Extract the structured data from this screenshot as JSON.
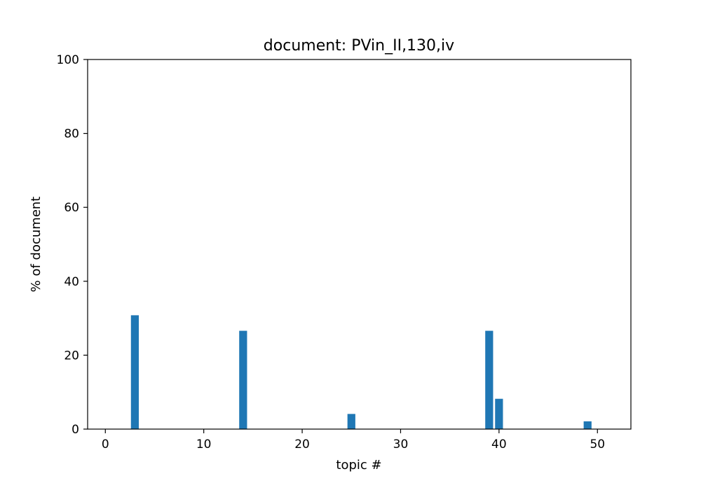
{
  "chart_data": {
    "type": "bar",
    "title": "document: PVin_II,130,iv",
    "xlabel": "topic #",
    "ylabel": "% of document",
    "xlim": [
      -1.8,
      53.4
    ],
    "ylim": [
      0,
      100
    ],
    "x_ticks": [
      0,
      10,
      20,
      30,
      40,
      50
    ],
    "y_ticks": [
      0,
      20,
      40,
      60,
      80,
      100
    ],
    "grid": false,
    "bar_color": "#1f77b4",
    "x": [
      0,
      1,
      2,
      3,
      4,
      5,
      6,
      7,
      8,
      9,
      10,
      11,
      12,
      13,
      14,
      15,
      16,
      17,
      18,
      19,
      20,
      21,
      22,
      23,
      24,
      25,
      26,
      27,
      28,
      29,
      30,
      31,
      32,
      33,
      34,
      35,
      36,
      37,
      38,
      39,
      40,
      41,
      42,
      43,
      44,
      45,
      46,
      47,
      48,
      49,
      50
    ],
    "values": [
      0,
      0,
      0,
      30.8,
      0,
      0,
      0,
      0,
      0,
      0,
      0,
      0,
      0,
      0,
      26.6,
      0,
      0,
      0,
      0,
      0,
      0,
      0,
      0,
      0,
      0,
      4.1,
      0,
      0,
      0,
      0,
      0,
      0,
      0,
      0,
      0,
      0,
      0,
      0,
      0,
      26.6,
      8.2,
      0,
      0,
      0,
      0,
      0,
      0,
      0,
      0,
      2.1,
      0
    ]
  }
}
